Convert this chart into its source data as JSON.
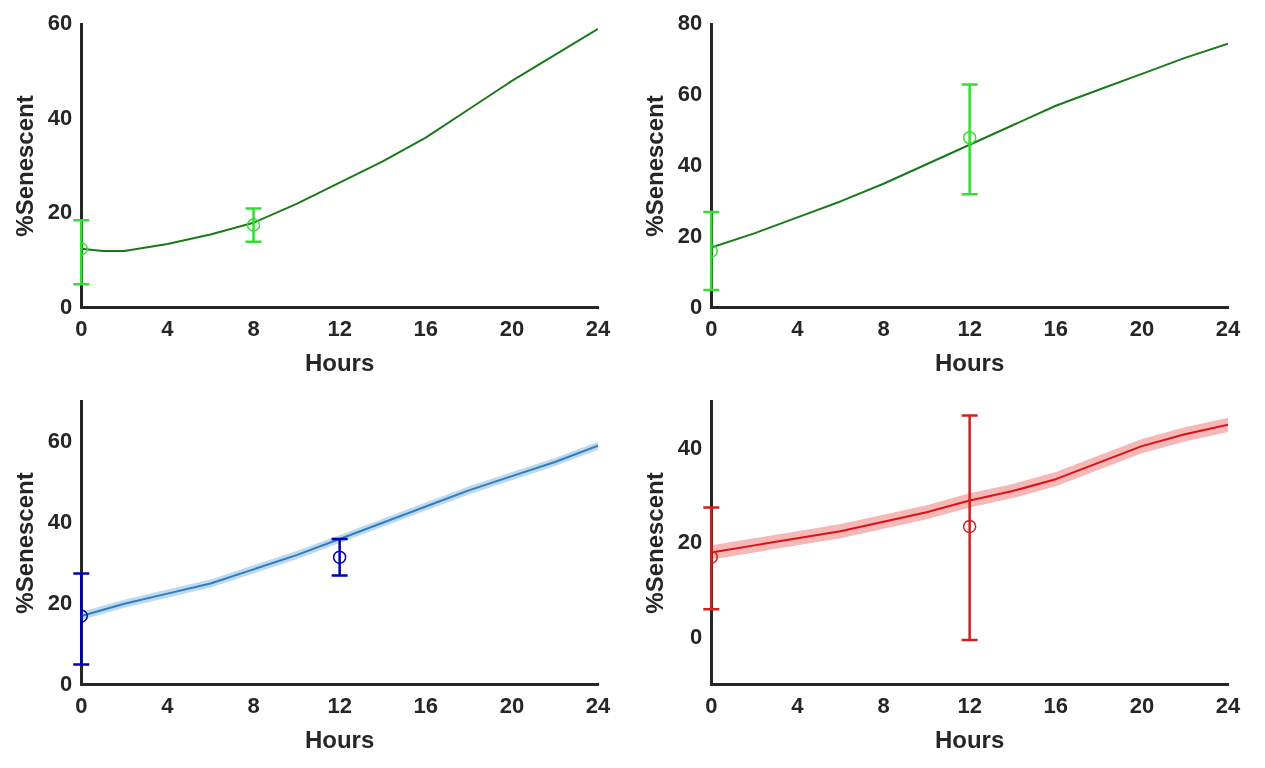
{
  "chart_data": [
    {
      "type": "line",
      "xlabel": "Hours",
      "ylabel": "%Senescent",
      "xlim": [
        0,
        24
      ],
      "xticks": [
        0,
        4,
        8,
        12,
        16,
        20,
        24
      ],
      "ylim": [
        0,
        60
      ],
      "yticks": [
        0,
        20,
        40,
        60
      ],
      "grid": false,
      "legend": false,
      "series": [
        {
          "type": "line",
          "color": "#1a7a1a",
          "marker": "none",
          "x": [
            0,
            1,
            2,
            4,
            6,
            8,
            10,
            12,
            14,
            16,
            18,
            20,
            22,
            24
          ],
          "values": [
            12.5,
            12,
            12,
            13.5,
            15.5,
            18,
            22,
            26.5,
            31,
            36,
            42,
            48,
            53.5,
            59
          ]
        },
        {
          "type": "scatter",
          "color": "#33dd33",
          "marker": "circle",
          "x": [
            0,
            8
          ],
          "values": [
            12.5,
            17.5
          ],
          "errors": [
            [
              5,
              18.5
            ],
            [
              14,
              21
            ]
          ]
        }
      ]
    },
    {
      "type": "line",
      "xlabel": "Hours",
      "ylabel": "%Senescent",
      "xlim": [
        0,
        24
      ],
      "xticks": [
        0,
        4,
        8,
        12,
        16,
        20,
        24
      ],
      "ylim": [
        0,
        80
      ],
      "yticks": [
        0,
        20,
        40,
        60,
        80
      ],
      "grid": false,
      "legend": false,
      "series": [
        {
          "type": "line",
          "color": "#1a7a1a",
          "marker": "none",
          "x": [
            0,
            2,
            4,
            6,
            8,
            10,
            12,
            14,
            16,
            18,
            20,
            22,
            24
          ],
          "values": [
            17,
            21,
            25.5,
            30,
            35,
            40.5,
            46,
            51.5,
            57,
            61.5,
            66,
            70.5,
            74.5
          ]
        },
        {
          "type": "scatter",
          "color": "#33dd33",
          "marker": "circle",
          "x": [
            0,
            12
          ],
          "values": [
            16,
            48
          ],
          "errors": [
            [
              5,
              27
            ],
            [
              32,
              63
            ]
          ]
        }
      ]
    },
    {
      "type": "line",
      "xlabel": "Hours",
      "ylabel": "%Senescent",
      "xlim": [
        0,
        24
      ],
      "xticks": [
        0,
        4,
        8,
        12,
        16,
        20,
        24
      ],
      "ylim": [
        0,
        70
      ],
      "yticks": [
        0,
        20,
        40,
        60
      ],
      "grid": false,
      "legend": false,
      "series": [
        {
          "type": "line",
          "color": "#2a7fc0",
          "marker": "none",
          "x": [
            0,
            2,
            4,
            6,
            8,
            10,
            12,
            14,
            16,
            18,
            20,
            22,
            24
          ],
          "values": [
            17,
            20,
            22.5,
            25,
            28.5,
            32,
            36,
            40,
            44,
            48,
            51.5,
            55,
            59
          ],
          "lower": [
            16,
            19,
            21.5,
            24,
            27.5,
            31,
            35,
            39,
            43,
            47,
            50.5,
            54,
            58
          ],
          "upper": [
            18,
            21,
            23.5,
            26,
            29.5,
            33,
            37,
            41,
            45,
            49,
            52.5,
            56,
            60
          ]
        },
        {
          "type": "scatter",
          "color": "#0000aa",
          "marker": "circle",
          "x": [
            0,
            12
          ],
          "values": [
            17,
            31.5
          ],
          "errors": [
            [
              5,
              27.5
            ],
            [
              27,
              36
            ]
          ]
        }
      ]
    },
    {
      "type": "line",
      "xlabel": "Hours",
      "ylabel": "%Senescent",
      "xlim": [
        0,
        24
      ],
      "xticks": [
        0,
        4,
        8,
        12,
        16,
        20,
        24
      ],
      "ylim": [
        -10,
        50
      ],
      "yticks": [
        0,
        20,
        40
      ],
      "grid": false,
      "legend": false,
      "series": [
        {
          "type": "line",
          "color": "#dd1111",
          "marker": "none",
          "x": [
            0,
            2,
            4,
            6,
            8,
            10,
            12,
            14,
            16,
            18,
            20,
            22,
            24
          ],
          "values": [
            18,
            19.5,
            21,
            22.5,
            24.5,
            26.5,
            29,
            31,
            33.5,
            37,
            40.5,
            43,
            45
          ],
          "lower": [
            16.5,
            18,
            19.5,
            21,
            23,
            25,
            27.5,
            29.5,
            32,
            35.5,
            39,
            41.5,
            43.5
          ],
          "upper": [
            19.5,
            21,
            22.5,
            24,
            26,
            28,
            30.5,
            32.5,
            35,
            38.5,
            42,
            44.5,
            46.5
          ]
        },
        {
          "type": "scatter",
          "color": "#cc2222",
          "marker": "circle",
          "x": [
            0,
            12
          ],
          "values": [
            17,
            23.5
          ],
          "errors": [
            [
              6,
              27.5
            ],
            [
              -0.5,
              47
            ]
          ]
        }
      ]
    }
  ]
}
